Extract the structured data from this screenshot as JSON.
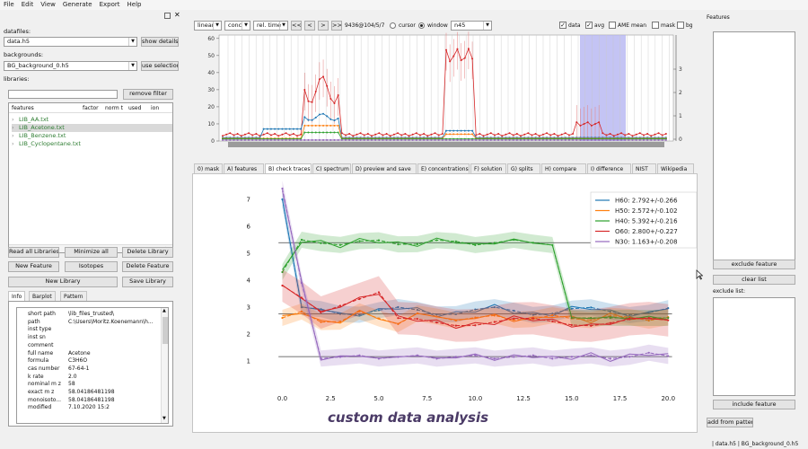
{
  "menu": [
    "File",
    "Edit",
    "View",
    "Generate",
    "Export",
    "Help"
  ],
  "left": {
    "datafiles_label": "datafiles:",
    "datafile": "data.h5",
    "show_details": "show details",
    "backgrounds_label": "backgrounds:",
    "background": "BG_background_0.h5",
    "use_selection": "use selection",
    "libraries_label": "libraries:",
    "filter_value": "",
    "remove_filter": "remove filter",
    "columns": [
      "features",
      "factor",
      "norm t",
      "used",
      "ion"
    ],
    "libraries": [
      "LIB_AA.txt",
      "LIB_Acetone.txt",
      "LIB_Benzene.txt",
      "LIB_Cyclopentane.txt"
    ],
    "selected_index": 1,
    "buttons": {
      "read_all": "Read all Libraries",
      "minimize_all": "Minimize all",
      "delete_library": "Delete Library",
      "new_feature": "New Feature",
      "isotopes": "Isotopes",
      "delete_feature": "Delete Feature",
      "new_library": "New Library",
      "save_library": "Save Library"
    },
    "info_tabs": [
      "Info",
      "Barplot",
      "Pattern"
    ],
    "info": [
      {
        "k": "short path",
        "v": "\\lib_files_trusted\\"
      },
      {
        "k": "path",
        "v": "C:\\Users\\Moritz.Koenemann\\h..."
      },
      {
        "k": "inst type",
        "v": ""
      },
      {
        "k": "inst sn",
        "v": ""
      },
      {
        "k": "comment",
        "v": ""
      },
      {
        "k": "full name",
        "v": "Acetone"
      },
      {
        "k": "formula",
        "v": "C3H6O"
      },
      {
        "k": "cas number",
        "v": "67-64-1"
      },
      {
        "k": "k rate",
        "v": "2.0"
      },
      {
        "k": "nominal m z",
        "v": "58"
      },
      {
        "k": "exact m z",
        "v": "58.04186481198"
      },
      {
        "k": "monoisoto...",
        "v": "58.04186481198"
      },
      {
        "k": "modified",
        "v": "7.10.2020 15:2"
      }
    ]
  },
  "toolbar": {
    "scale": "linear",
    "unit": "conc",
    "time": "rel. time",
    "nav": [
      "<<",
      "<",
      ">",
      ">>"
    ],
    "position": "9436@104/5/7",
    "cursor_label": "cursor",
    "window_label": "window",
    "window_value": "n45",
    "checks": [
      {
        "label": "data",
        "checked": true
      },
      {
        "label": "avg",
        "checked": true
      },
      {
        "label": "AME mean",
        "checked": false
      },
      {
        "label": "mask",
        "checked": false
      },
      {
        "label": "bg",
        "checked": false
      }
    ]
  },
  "tabs": [
    "0) mask",
    "A) features",
    "B) check traces",
    "C) spectrum",
    "D) preview and save",
    "E) concentrations",
    "F) solution",
    "G) splits",
    "H) compare",
    "I) difference",
    "NIST",
    "Wikipedia"
  ],
  "active_tab": 2,
  "right": {
    "features_label": "Features",
    "exclude_feature": "exclude feature",
    "clear_list": "clear list",
    "exclude_list_label": "exclude list:",
    "include_feature": "include feature",
    "add_from_pattern": "add from pattern"
  },
  "status": "| data.h5 | BG_background_0.h5",
  "overlay_text": "custom data analysis",
  "colors": {
    "H60": "#1f77b4",
    "H50": "#ff7f0e",
    "H40": "#2ca02c",
    "O60": "#d62728",
    "N30": "#9467bd",
    "highlight": "#b0b0f0"
  },
  "chart_data": [
    {
      "type": "line",
      "name": "overview",
      "y_left_ticks": [
        0,
        10,
        20,
        30,
        40,
        50,
        60
      ],
      "y_right_ticks": [
        0,
        1,
        2,
        3
      ],
      "ylim": [
        0,
        62
      ]
    },
    {
      "type": "line",
      "name": "check traces",
      "xlim": [
        -1,
        20.5
      ],
      "ylim": [
        0,
        7.4
      ],
      "x_ticks": [
        "0.0",
        "2.5",
        "5.0",
        "7.5",
        "10.0",
        "12.5",
        "15.0",
        "17.5",
        "20.0"
      ],
      "y_ticks": [
        "1",
        "2",
        "3",
        "4",
        "5",
        "6",
        "7"
      ],
      "legend_position": "top-right",
      "series": [
        {
          "name": "H60: 2.792+/-0.266",
          "color": "#1f77b4",
          "level": 2.792
        },
        {
          "name": "H50: 2.572+/-0.102",
          "color": "#ff7f0e",
          "level": 2.572
        },
        {
          "name": "H40: 5.392+/-0.216",
          "color": "#2ca02c",
          "level": 5.392
        },
        {
          "name": "O60: 2.800+/-0.227",
          "color": "#d62728",
          "level": 2.8
        },
        {
          "name": "N30: 1.163+/-0.208",
          "color": "#9467bd",
          "level": 1.163
        }
      ]
    }
  ]
}
